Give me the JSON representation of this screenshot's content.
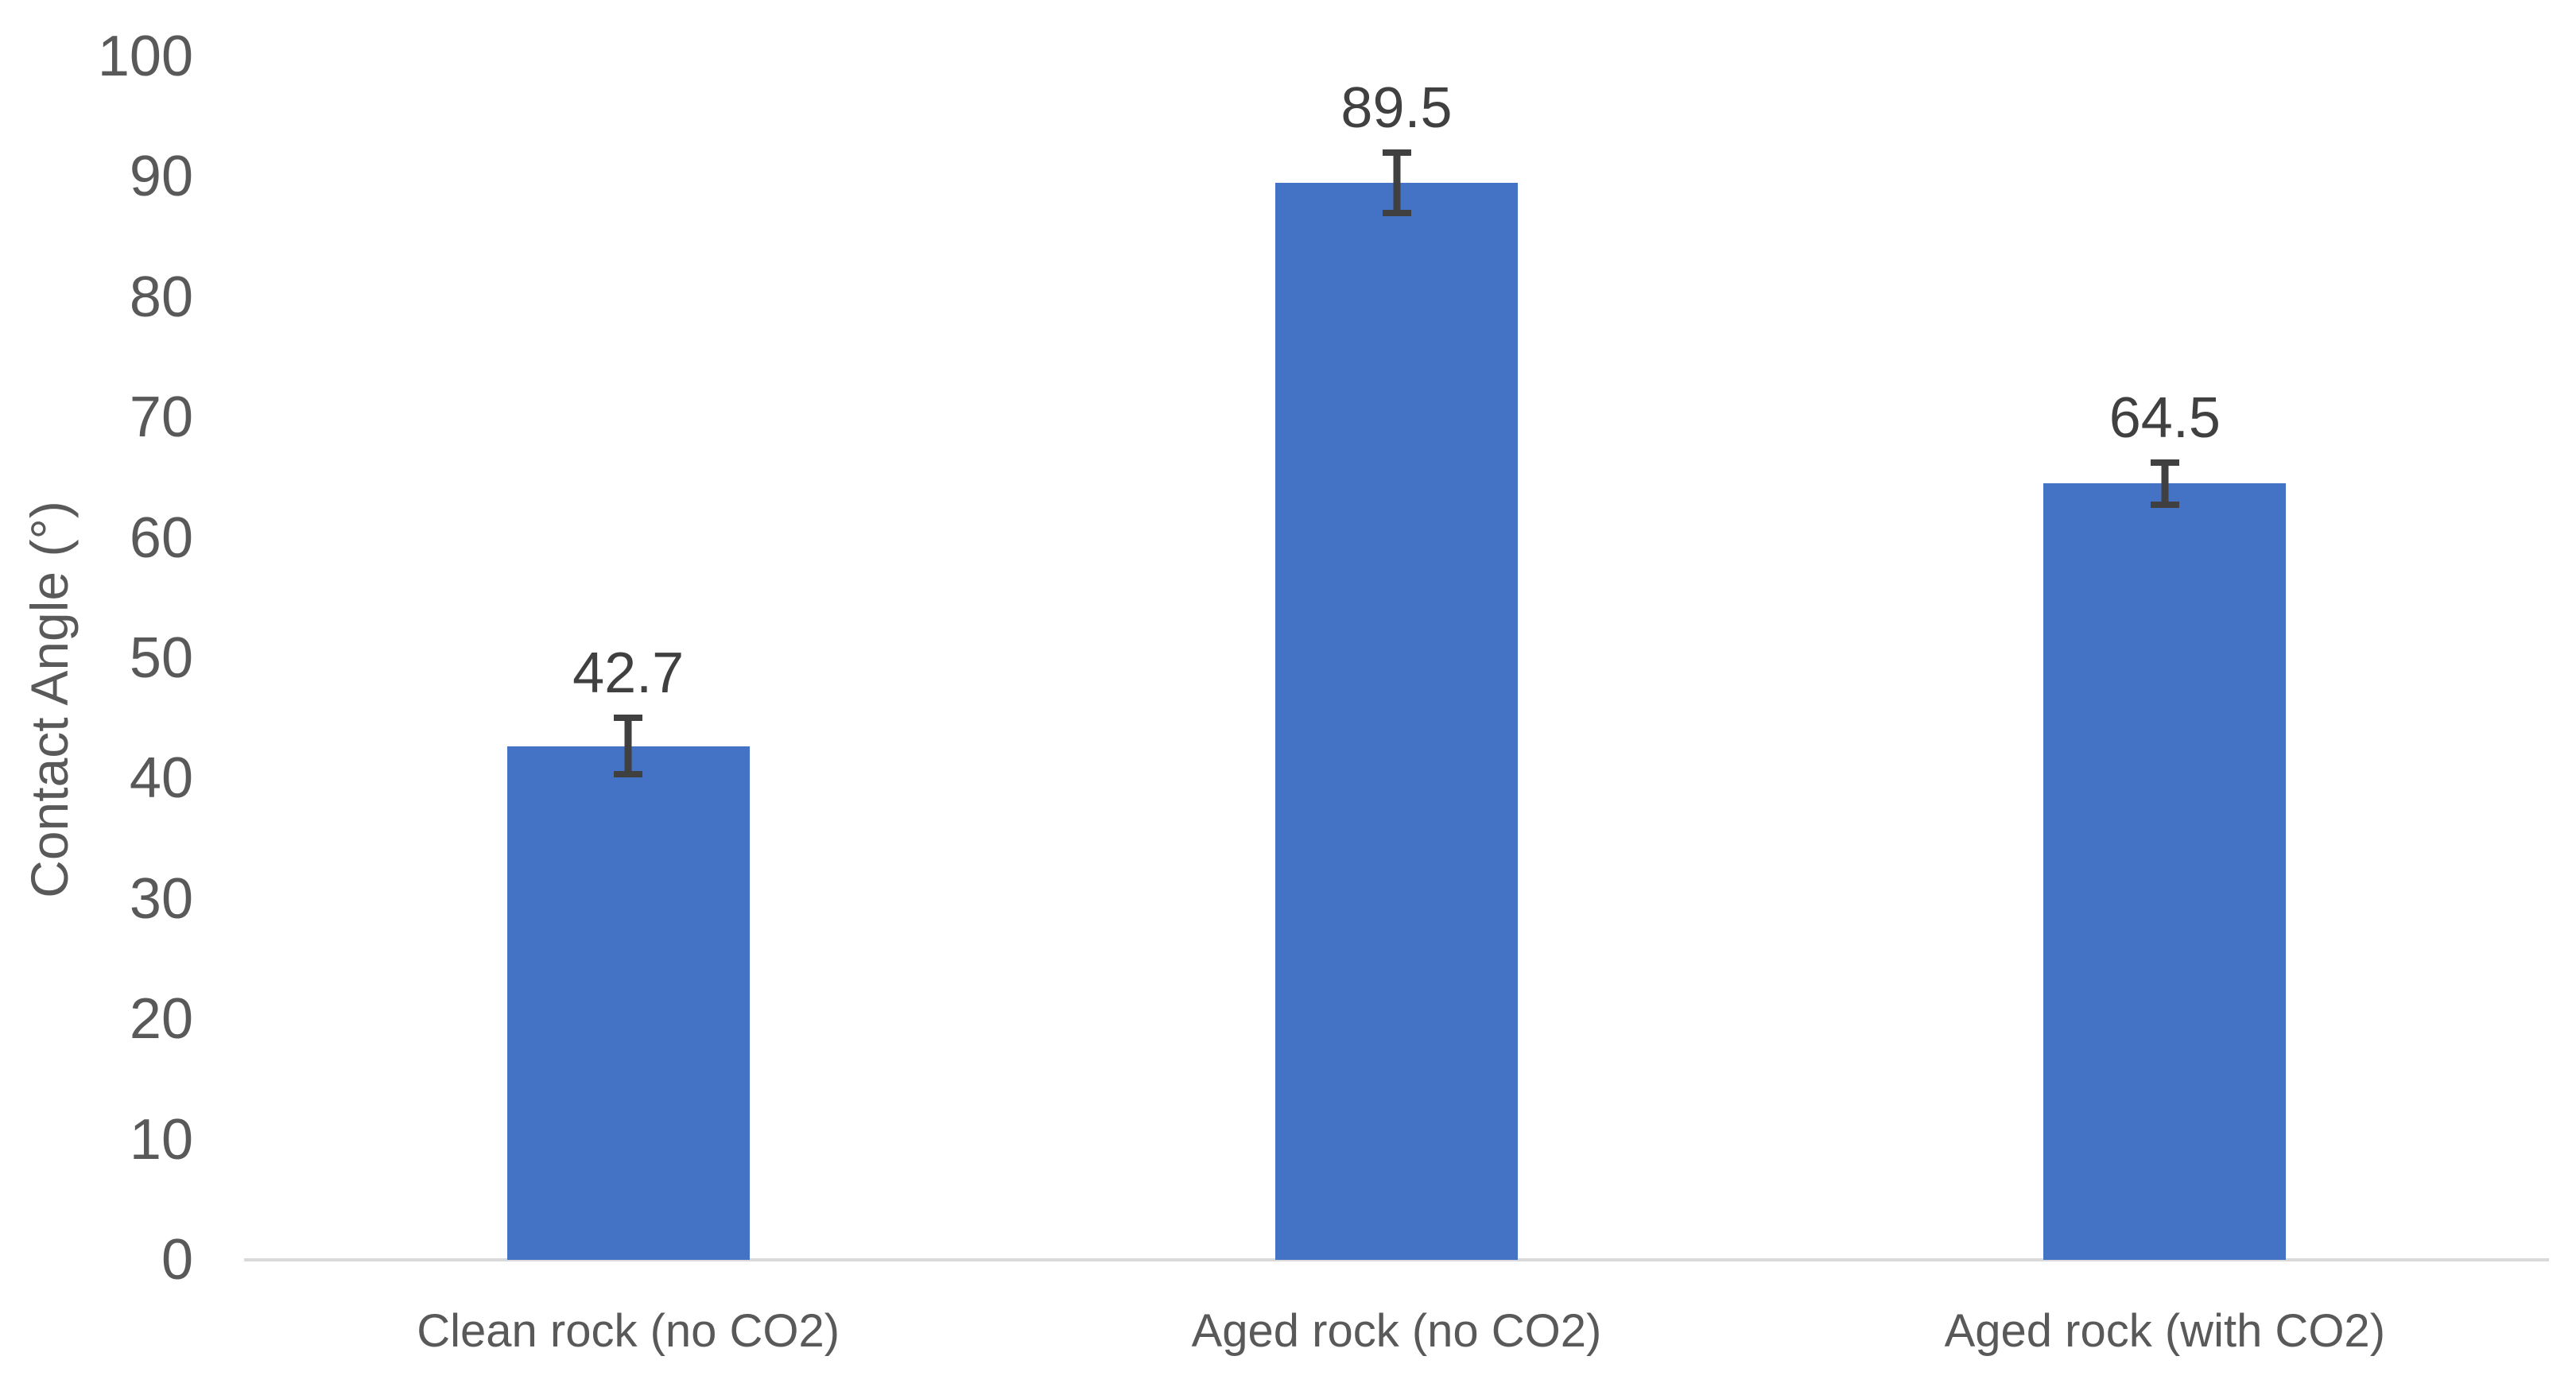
{
  "chart_data": {
    "type": "bar",
    "title": "",
    "categories": [
      "Clean rock (no CO2)",
      "Aged rock (no CO2)",
      "Aged rock (with CO2)"
    ],
    "values": [
      42.7,
      89.5,
      64.5
    ],
    "data_labels": [
      "42.7",
      "89.5",
      "64.5"
    ],
    "error_bars": [
      2.6,
      2.8,
      2.0
    ],
    "xlabel": "",
    "ylabel": "Contact Angle (°)",
    "ylim": [
      0,
      100
    ],
    "yticks": [
      0,
      10,
      20,
      30,
      40,
      50,
      60,
      70,
      80,
      90,
      100
    ],
    "grid": false,
    "legend": "none",
    "colors": {
      "bar": "#4472C4",
      "error_bar": "#404040",
      "axis_line": "#D9D9D9",
      "tick_label": "#595959",
      "category_label": "#595959",
      "data_label": "#404040",
      "background": "#FFFFFF"
    }
  }
}
